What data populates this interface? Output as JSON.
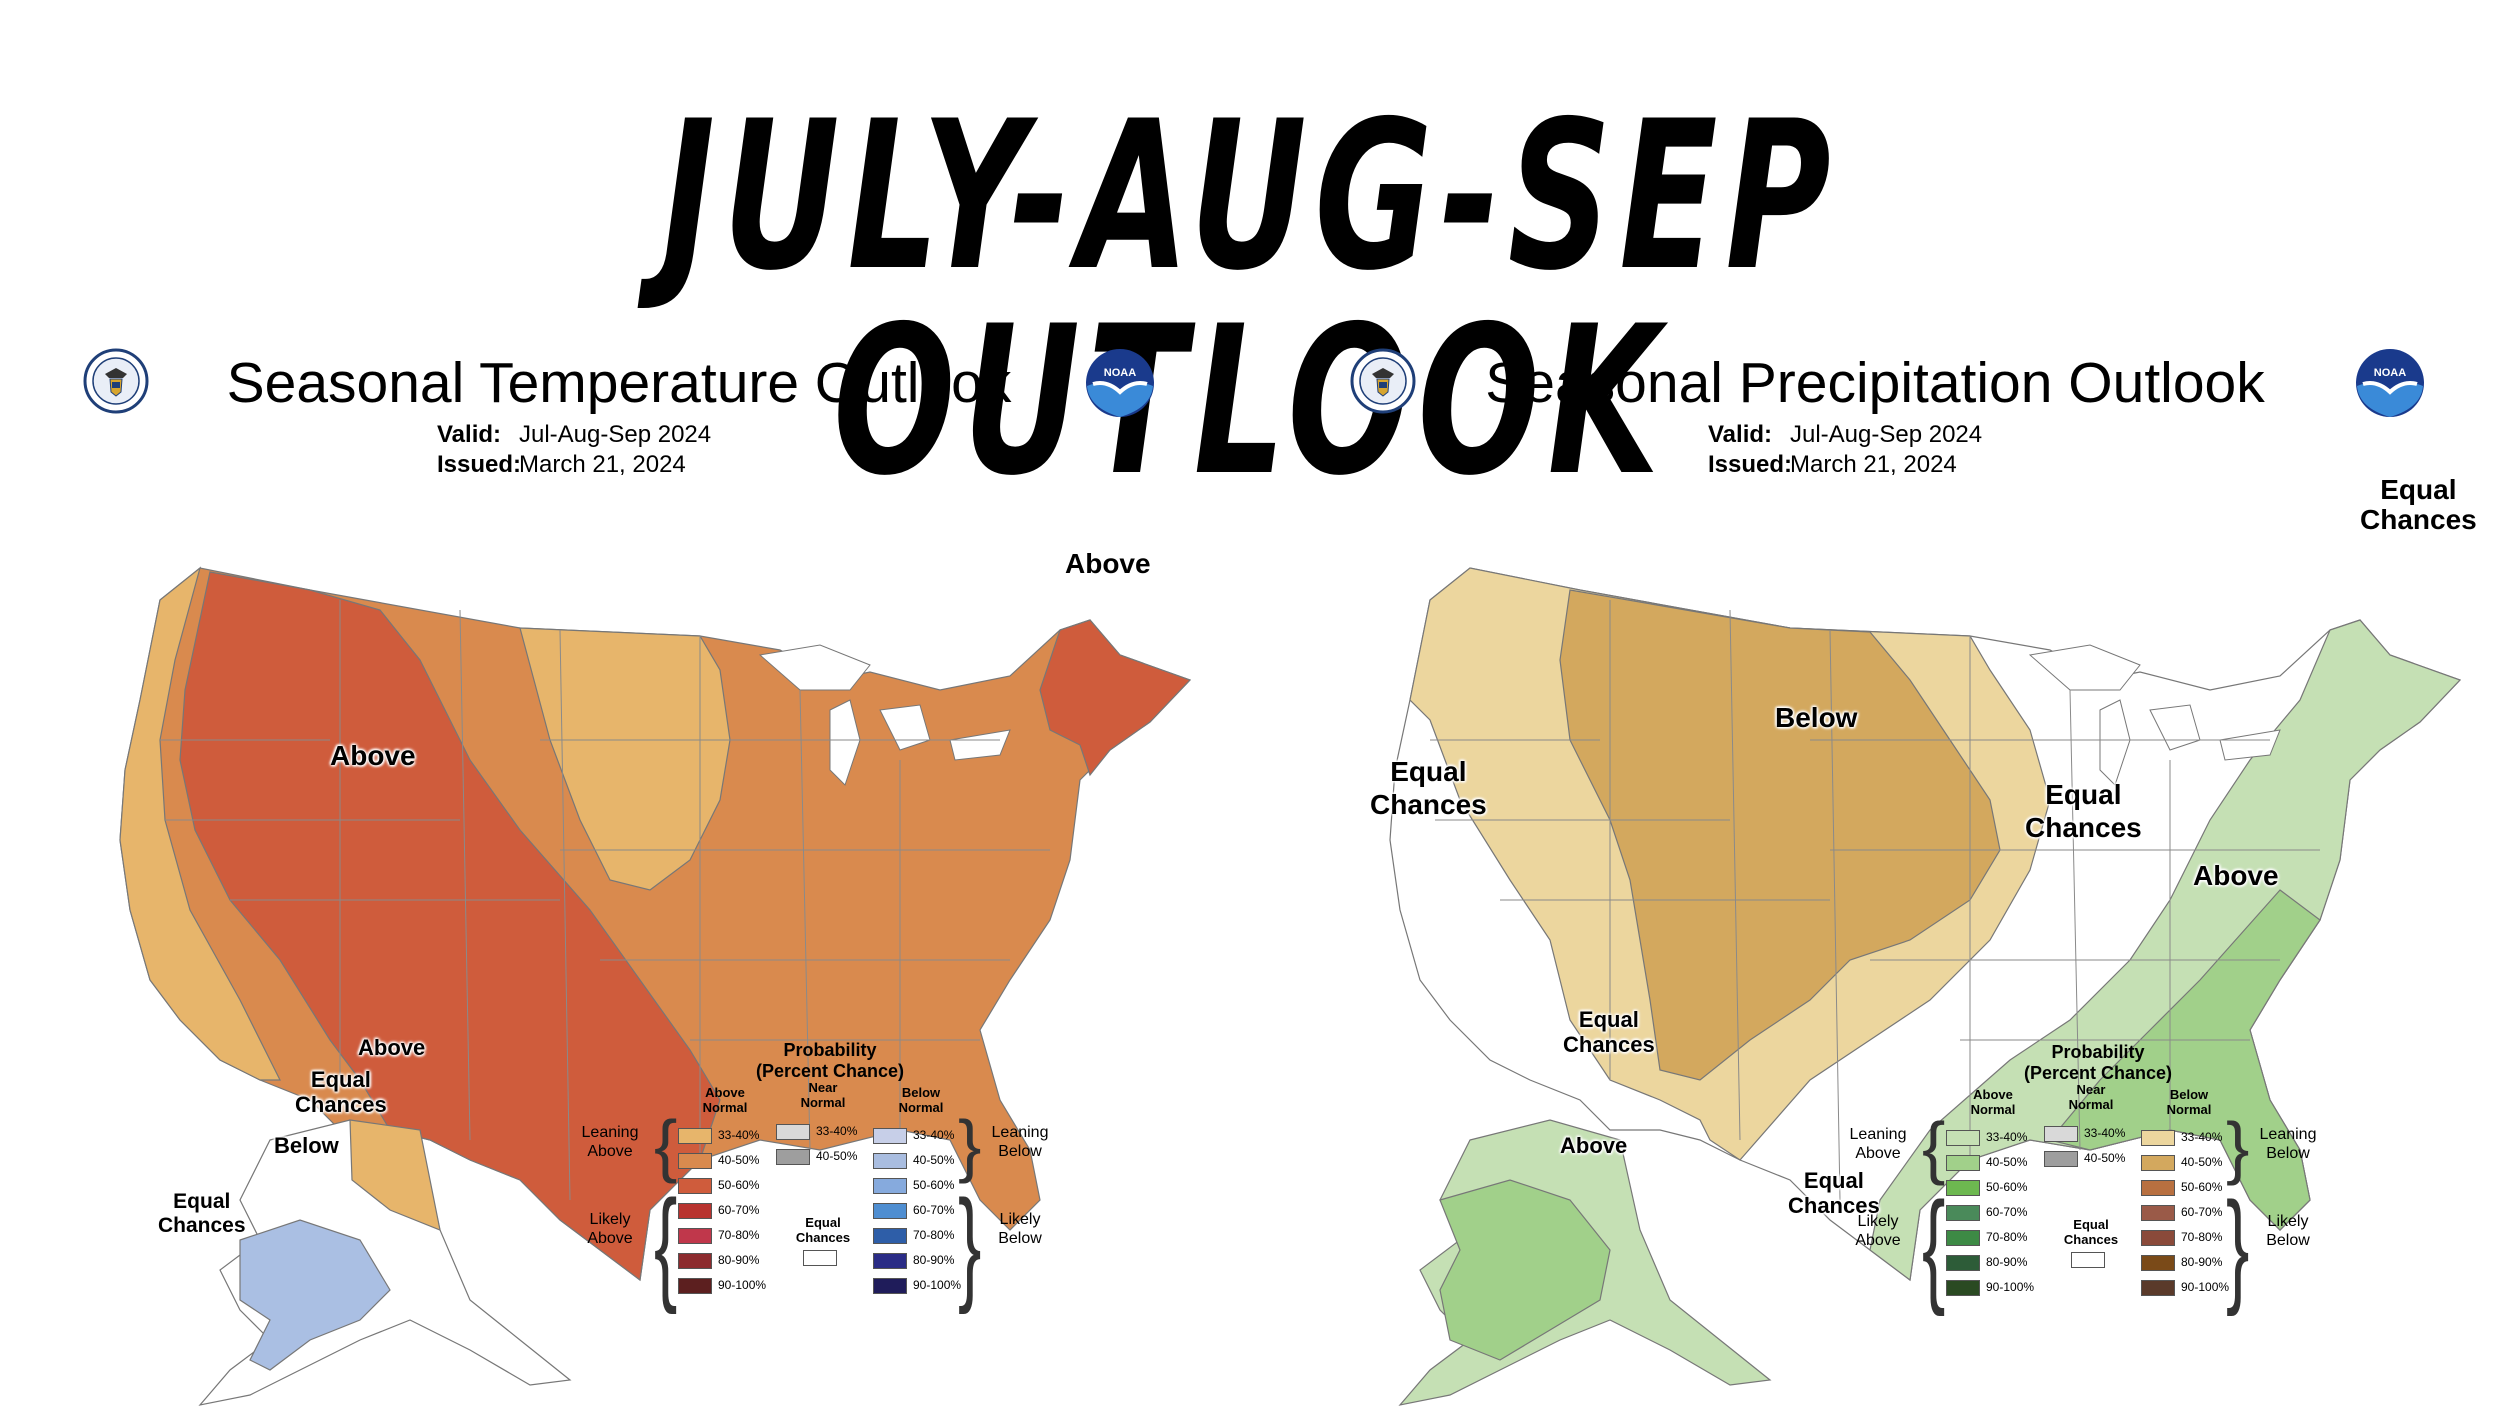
{
  "headline": "JULY-AUG-SEP OUTLOOK",
  "temperature": {
    "title": "Seasonal Temperature Outlook",
    "valid_label": "Valid:",
    "valid_value": "Jul-Aug-Sep 2024",
    "issued_label": "Issued:",
    "issued_value": "March 21, 2024",
    "map_labels": {
      "above_main": "Above",
      "above_northeast": "Above",
      "above_alaska": "Above",
      "equal_chances_alaska_1": "Equal",
      "equal_chances_alaska_2": "Chances",
      "below_alaska": "Below",
      "equal_chances_sw_1": "Equal",
      "equal_chances_sw_2": "Chances"
    },
    "legend": {
      "title_1": "Probability",
      "title_2": "(Percent Chance)",
      "col_above_1": "Above",
      "col_above_2": "Normal",
      "col_near_1": "Near",
      "col_near_2": "Normal",
      "col_below_1": "Below",
      "col_below_2": "Normal",
      "leaning_above_1": "Leaning",
      "leaning_above_2": "Above",
      "likely_above_1": "Likely",
      "likely_above_2": "Above",
      "leaning_below_1": "Leaning",
      "leaning_below_2": "Below",
      "likely_below_1": "Likely",
      "likely_below_2": "Below",
      "equal_1": "Equal",
      "equal_2": "Chances",
      "above_bins": [
        "33-40%",
        "40-50%",
        "50-60%",
        "60-70%",
        "70-80%",
        "80-90%",
        "90-100%"
      ],
      "near_bins": [
        "33-40%",
        "40-50%"
      ],
      "below_bins": [
        "33-40%",
        "40-50%",
        "50-60%",
        "60-70%",
        "70-80%",
        "80-90%",
        "90-100%"
      ],
      "above_colors": [
        "#e7b56b",
        "#d98a4e",
        "#cf5c3c",
        "#b8332f",
        "#c0374b",
        "#8c2b2e",
        "#5c1f1f"
      ],
      "near_colors": [
        "#d9d9d9",
        "#9e9e9e"
      ],
      "below_colors": [
        "#c7cfe8",
        "#a9bde0",
        "#86aadd",
        "#4f8ed1",
        "#2e5ea8",
        "#2a2c86",
        "#1f1c5a"
      ]
    }
  },
  "precipitation": {
    "title": "Seasonal Precipitation Outlook",
    "valid_label": "Valid:",
    "valid_value": "Jul-Aug-Sep 2024",
    "issued_label": "Issued:",
    "issued_value": "March 21, 2024",
    "map_labels": {
      "equal_west_1": "Equal",
      "equal_west_2": "Chances",
      "below_main": "Below",
      "equal_central_1": "Equal",
      "equal_central_2": "Chances",
      "equal_ne_1": "Equal",
      "equal_ne_2": "Chances",
      "above_se": "Above",
      "equal_alaska_1": "Equal",
      "equal_alaska_2": "Chances",
      "above_alaska": "Above",
      "equal_se_alaska_1": "Equal",
      "equal_se_alaska_2": "Chances"
    },
    "legend": {
      "title_1": "Probability",
      "title_2": "(Percent Chance)",
      "col_above_1": "Above",
      "col_above_2": "Normal",
      "col_near_1": "Near",
      "col_near_2": "Normal",
      "col_below_1": "Below",
      "col_below_2": "Normal",
      "leaning_above_1": "Leaning",
      "leaning_above_2": "Above",
      "likely_above_1": "Likely",
      "likely_above_2": "Above",
      "leaning_below_1": "Leaning",
      "leaning_below_2": "Below",
      "likely_below_1": "Likely",
      "likely_below_2": "Below",
      "equal_1": "Equal",
      "equal_2": "Chances",
      "above_bins": [
        "33-40%",
        "40-50%",
        "50-60%",
        "60-70%",
        "70-80%",
        "80-90%",
        "90-100%"
      ],
      "near_bins": [
        "33-40%",
        "40-50%"
      ],
      "below_bins": [
        "33-40%",
        "40-50%",
        "50-60%",
        "60-70%",
        "70-80%",
        "80-90%",
        "90-100%"
      ],
      "above_colors": [
        "#c5e0b4",
        "#a1d08a",
        "#6db850",
        "#4a8a5a",
        "#3d8a45",
        "#2d5c38",
        "#2a4a22"
      ],
      "near_colors": [
        "#d9d9d9",
        "#9e9e9e"
      ],
      "below_colors": [
        "#ecd69e",
        "#d3a85e",
        "#b87040",
        "#9a5a48",
        "#8a4a3a",
        "#7a4a18",
        "#5a3a2a"
      ]
    }
  },
  "colors": {
    "temp_lean_above": "#e7b56b",
    "temp_above_40": "#d98a4e",
    "temp_above_50": "#cf5c3c",
    "temp_below_33": "#aabfe3",
    "precip_below_33": "#ecd69e",
    "precip_below_40": "#d3a85e",
    "precip_above_33": "#c5e0b4",
    "precip_above_40": "#a1d08a"
  }
}
